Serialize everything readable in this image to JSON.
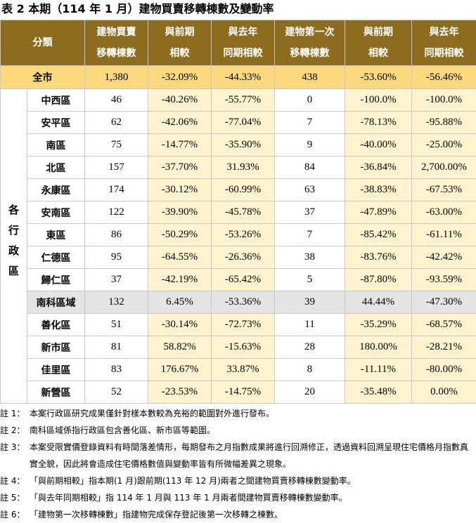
{
  "title": "表 2 本期（114 年 1 月）建物買賣移轉棟數及變動率",
  "table": {
    "header": {
      "category": "分類",
      "columns": [
        [
          "建物買賣",
          "移轉棟數"
        ],
        [
          "與前期",
          "相較"
        ],
        [
          "與去年",
          "同期相較"
        ],
        [
          "建物第一次",
          "移轉棟數"
        ],
        [
          "與前期",
          "相較"
        ],
        [
          "與去年",
          "同期相較"
        ]
      ]
    },
    "total": {
      "name": "全市",
      "values": [
        "1,380",
        "-32.09%",
        "-44.33%",
        "438",
        "-53.60%",
        "-56.46%"
      ]
    },
    "group": "各行政區",
    "rows": [
      {
        "name": "中西區",
        "values": [
          "46",
          "-40.26%",
          "-55.77%",
          "0",
          "-100.0%",
          "-100.0%"
        ]
      },
      {
        "name": "安平區",
        "values": [
          "62",
          "-42.06%",
          "-77.04%",
          "7",
          "-78.13%",
          "-95.88%"
        ]
      },
      {
        "name": "南區",
        "values": [
          "75",
          "-14.77%",
          "-35.90%",
          "9",
          "-40.00%",
          "-25.00%"
        ]
      },
      {
        "name": "北區",
        "values": [
          "157",
          "-37.70%",
          "31.93%",
          "84",
          "-36.84%",
          "2,700.00%"
        ]
      },
      {
        "name": "永康區",
        "values": [
          "174",
          "-30.12%",
          "-60.99%",
          "63",
          "-38.83%",
          "-67.53%"
        ]
      },
      {
        "name": "安南區",
        "values": [
          "122",
          "-39.90%",
          "-45.78%",
          "37",
          "-47.89%",
          "-63.00%"
        ]
      },
      {
        "name": "東區",
        "values": [
          "86",
          "-50.29%",
          "-53.26%",
          "7",
          "-85.42%",
          "-61.11%"
        ]
      },
      {
        "name": "仁德區",
        "values": [
          "95",
          "-64.55%",
          "-26.36%",
          "38",
          "-83.76%",
          "-42.42%"
        ]
      },
      {
        "name": "歸仁區",
        "values": [
          "37",
          "-42.19%",
          "-65.42%",
          "5",
          "-87.80%",
          "-93.59%"
        ]
      },
      {
        "name": "南科區域",
        "values": [
          "132",
          "6.45%",
          "-53.36%",
          "39",
          "44.44%",
          "-47.30%"
        ]
      },
      {
        "name": "善化區",
        "values": [
          "51",
          "-30.14%",
          "-72.73%",
          "11",
          "-35.29%",
          "-68.57%"
        ]
      },
      {
        "name": "新市區",
        "values": [
          "81",
          "58.82%",
          "-15.63%",
          "28",
          "180.00%",
          "-28.21%"
        ]
      },
      {
        "name": "佳里區",
        "values": [
          "83",
          "176.67%",
          "33.87%",
          "8",
          "-11.11%",
          "-80.00%"
        ]
      },
      {
        "name": "新營區",
        "values": [
          "52",
          "-23.53%",
          "-14.75%",
          "20",
          "-35.48%",
          "0.00%"
        ]
      }
    ]
  },
  "notes": [
    {
      "label": "註 1：",
      "text": "本案行政區研究成果僅針對樣本數較為充裕的範圍對外進行發布。"
    },
    {
      "label": "註 2：",
      "text": "南科區域係指行政區包含善化區、新市區等範圍。"
    },
    {
      "label": "註 3：",
      "text": "本案受限實價登錄資料有時間落差情形，每期發布之月指數成果將進行回溯修正，透過資料回溯呈現住宅價格月指數真實全貌，因此將會造成住宅價格數值與變動率皆有所微幅差異之現象。"
    },
    {
      "label": "註 4：",
      "text": "「與前期相較」指本期(1 月)跟前期(113 年 12 月)兩者之間建物買賣移轉棟數變動率。"
    },
    {
      "label": "註 5：",
      "text": "「與去年同期相較」指 114 年 1 月與 113 年 1 月兩者間建物買賣移轉棟數變動率。"
    },
    {
      "label": "註 6：",
      "text": "「建物第一次移轉棟數」指建物完成保存登記後第一次移轉之棟數。"
    }
  ]
}
